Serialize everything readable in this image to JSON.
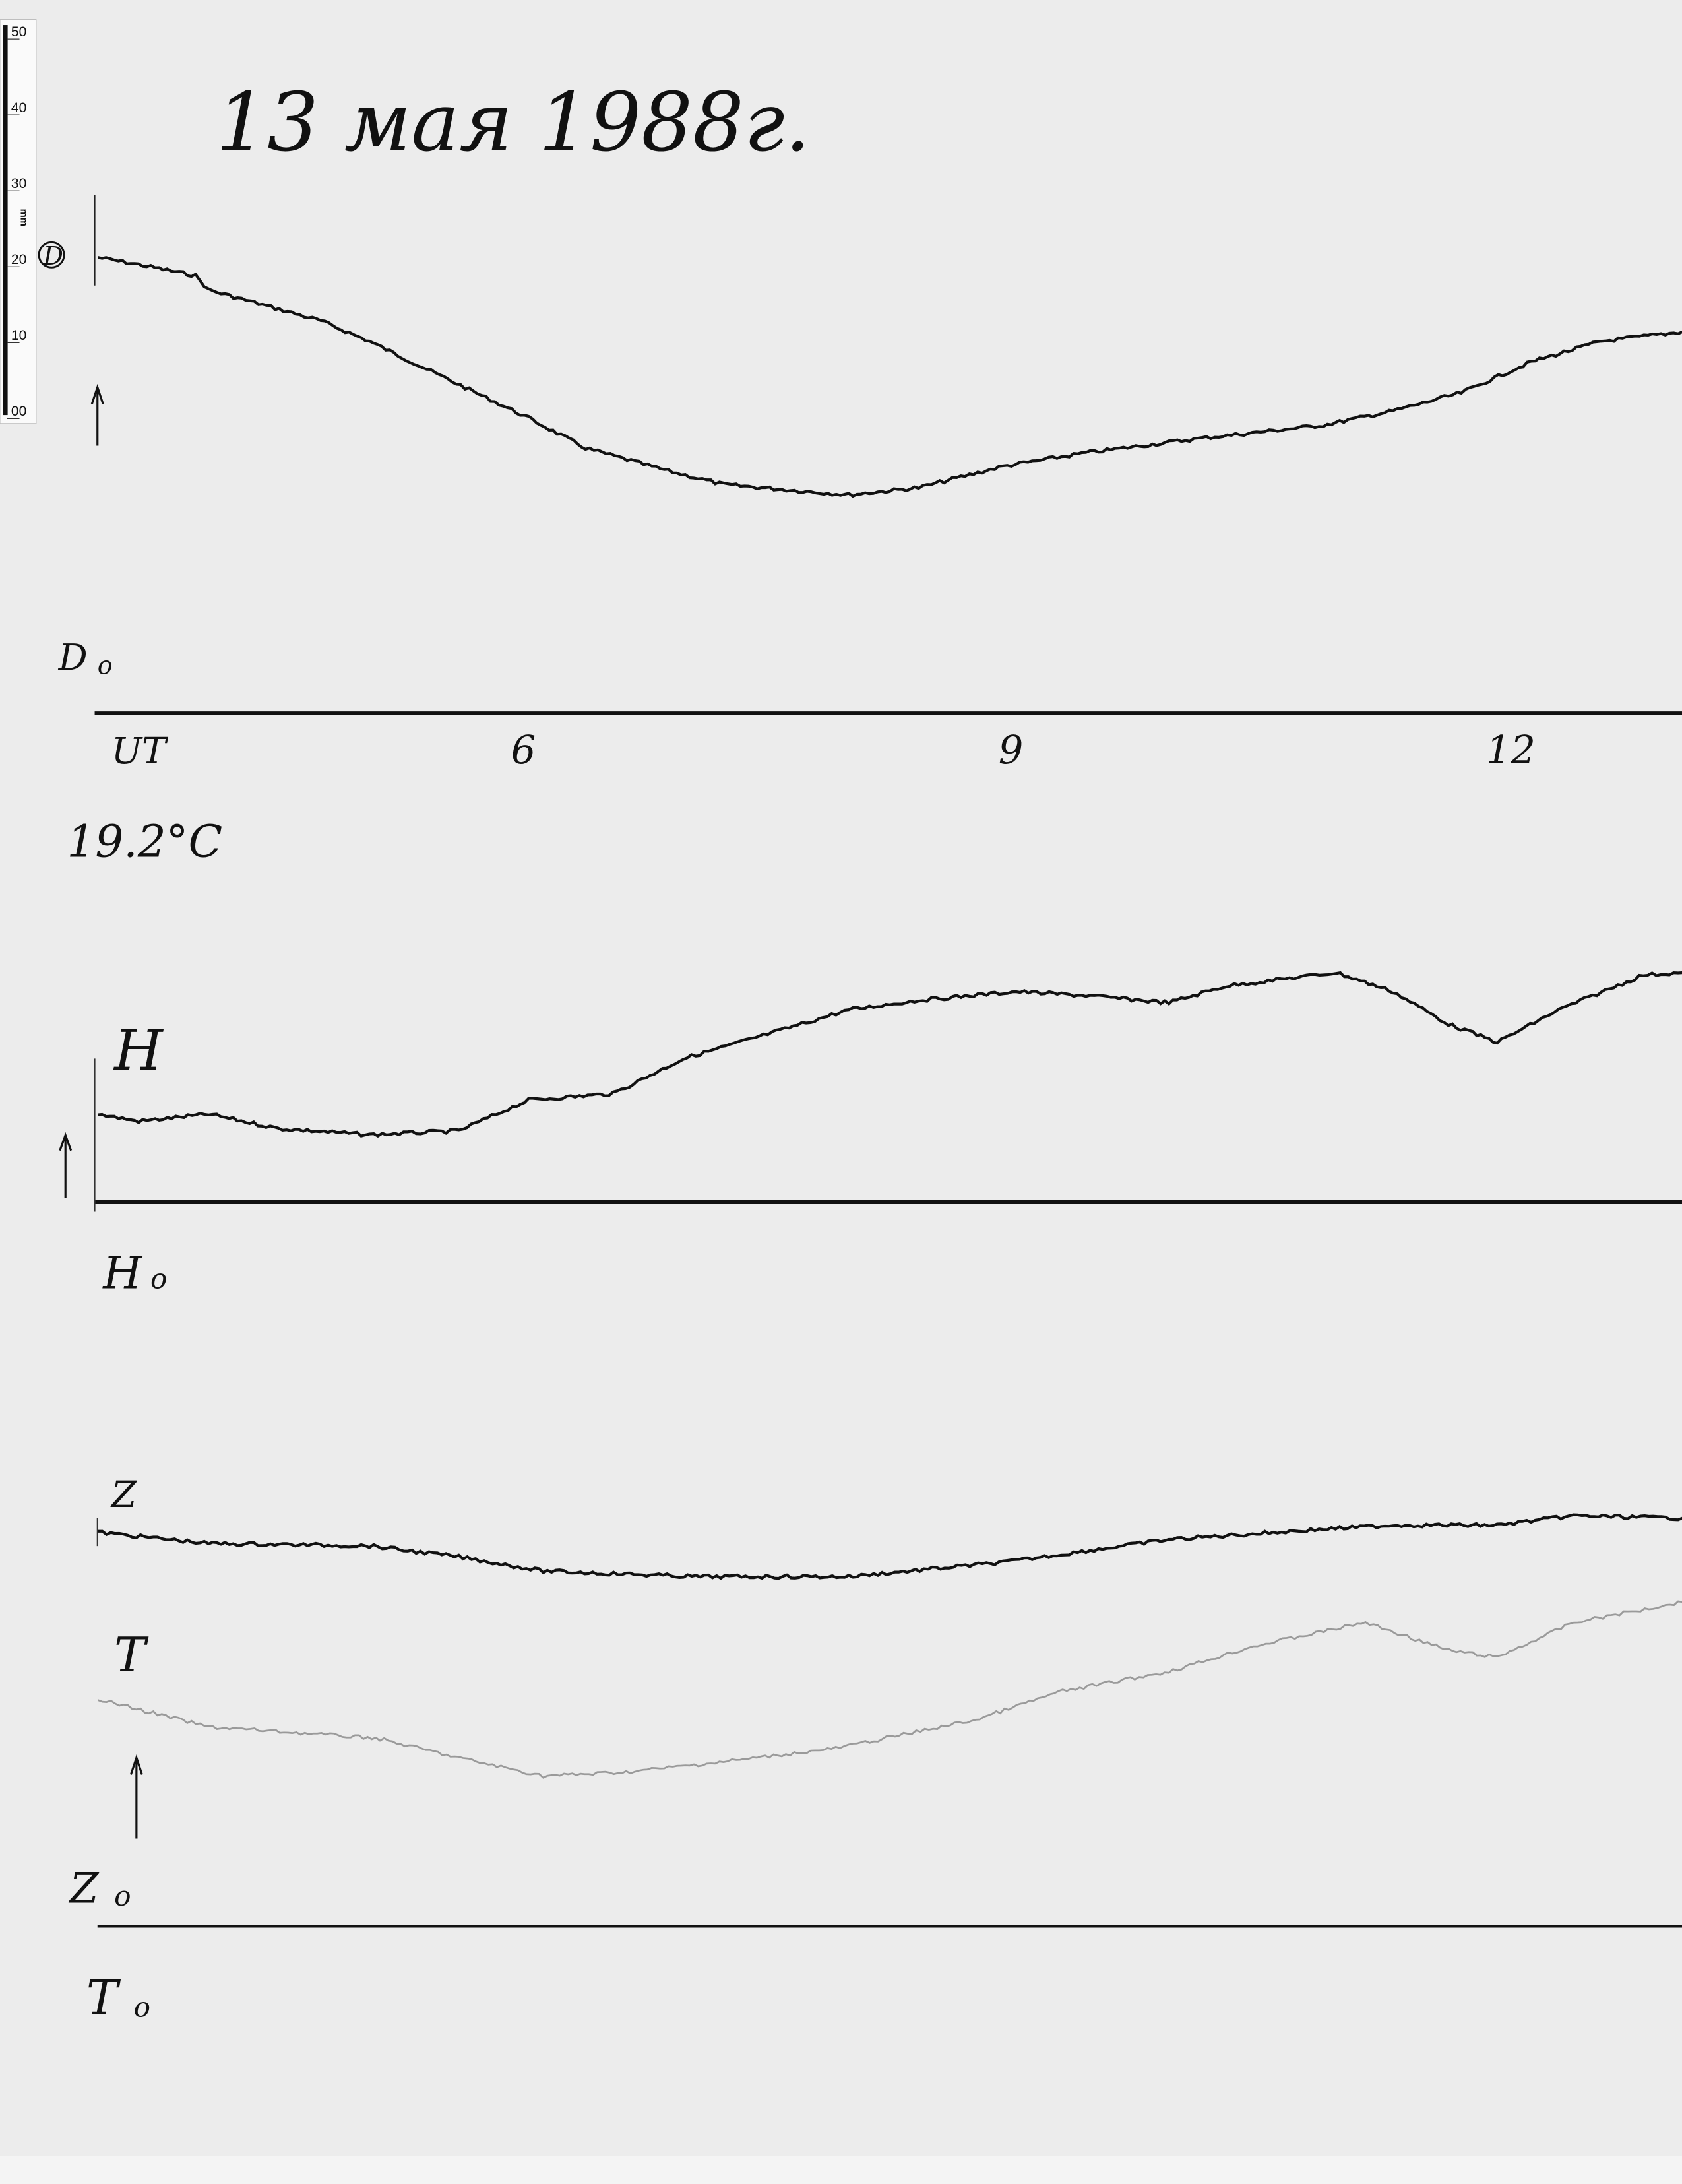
{
  "title": "13 мая 1988г.",
  "ruler": {
    "ticks": [
      "50",
      "40",
      "30",
      "20",
      "10",
      "00"
    ],
    "unit": "mm"
  },
  "labels": {
    "d": "D",
    "d0": "D",
    "d0_sub": "o",
    "ut": "UT",
    "temperature": "19.2°C",
    "h": "H",
    "h0": "H",
    "h0_sub": "o",
    "z": "Z",
    "z0": "Z",
    "z0_sub": "o",
    "t": "T",
    "t0": "T",
    "t0_sub": "o"
  },
  "chart_data": {
    "type": "line",
    "title": "13 мая 1988г.",
    "xlabel": "UT",
    "x_tick_labels": [
      "6",
      "9",
      "12"
    ],
    "x_ticks": [
      6,
      9,
      12
    ],
    "grid": false,
    "colors": {
      "D": "#111111",
      "H": "#111111",
      "Z": "#111111",
      "T": "#9a9a9a"
    },
    "series": [
      {
        "name": "D",
        "x": [
          3.39,
          3.64,
          3.99,
          4.07,
          4.76,
          5.06,
          5.36,
          6.04,
          6.39,
          6.9,
          7.24,
          8.01,
          8.44,
          8.96,
          9.47,
          10.16,
          10.93,
          11.36,
          11.78,
          12.21,
          12.64,
          13.14
        ],
        "y": [
          57.6,
          56.7,
          55.3,
          53.5,
          49.6,
          47.0,
          44.0,
          37.3,
          33.5,
          30.6,
          28.9,
          27.6,
          28.5,
          31.2,
          32.9,
          34.7,
          36.4,
          38.2,
          40.5,
          44.4,
          47.0,
          48.2
        ]
      },
      {
        "name": "H",
        "x": [
          3.39,
          3.64,
          4.07,
          4.5,
          5.06,
          5.61,
          6.04,
          6.56,
          6.99,
          7.59,
          8.01,
          8.44,
          9.04,
          9.47,
          9.98,
          10.33,
          11.01,
          11.36,
          11.7,
          12.0,
          12.38,
          12.9,
          13.14
        ],
        "y": [
          11.1,
          10.2,
          11.1,
          9.3,
          8.5,
          9.0,
          12.9,
          13.7,
          18.1,
          21.7,
          24.3,
          25.5,
          26.6,
          26.1,
          25.2,
          27.3,
          29.0,
          26.6,
          22.5,
          20.2,
          24.3,
          28.7,
          29.0
        ]
      },
      {
        "name": "Z",
        "x": [
          3.39,
          4.07,
          5.06,
          5.61,
          6.13,
          7.07,
          8.01,
          8.96,
          9.98,
          10.93,
          11.36,
          12.0,
          12.47,
          13.14
        ],
        "y": [
          49.8,
          48.4,
          48.1,
          46.7,
          44.9,
          44.2,
          44.2,
          46.0,
          48.9,
          50.2,
          50.7,
          50.7,
          51.9,
          51.6
        ]
      },
      {
        "name": "T",
        "x": [
          3.39,
          4.07,
          5.1,
          5.61,
          6.13,
          6.64,
          7.24,
          7.93,
          8.79,
          9.3,
          9.98,
          10.5,
          11.19,
          11.7,
          12.0,
          12.47,
          13.14
        ],
        "y": [
          28.7,
          25.2,
          23.8,
          21.3,
          19.0,
          19.5,
          20.8,
          22.5,
          26.1,
          29.6,
          32.2,
          35.4,
          38.4,
          34.9,
          34.0,
          38.4,
          41.0
        ]
      }
    ],
    "y_unit": "mm"
  }
}
